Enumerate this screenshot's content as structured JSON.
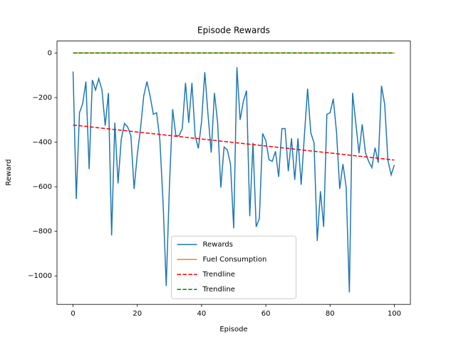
{
  "chart_data": {
    "type": "line",
    "title": "Episode Rewards",
    "x_label": "Episode",
    "y_label": "Reward",
    "x": [
      0,
      1,
      2,
      3,
      4,
      5,
      6,
      7,
      8,
      9,
      10,
      11,
      12,
      13,
      14,
      15,
      16,
      17,
      18,
      19,
      20,
      21,
      22,
      23,
      24,
      25,
      26,
      27,
      28,
      29,
      30,
      31,
      32,
      33,
      34,
      35,
      36,
      37,
      38,
      39,
      40,
      41,
      42,
      43,
      44,
      45,
      46,
      47,
      48,
      49,
      50,
      51,
      52,
      53,
      54,
      55,
      56,
      57,
      58,
      59,
      60,
      61,
      62,
      63,
      64,
      65,
      66,
      67,
      68,
      69,
      70,
      71,
      72,
      73,
      74,
      75,
      76,
      77,
      78,
      79,
      80,
      81,
      82,
      83,
      84,
      85,
      86,
      87,
      88,
      89,
      90,
      91,
      92,
      93,
      94,
      95,
      96,
      97,
      98,
      99,
      100
    ],
    "series": [
      {
        "name": "Rewards",
        "color": "#1f77b4",
        "dash": false,
        "values": [
          -83,
          -655,
          -268,
          -227,
          -128,
          -521,
          -121,
          -166,
          -115,
          -166,
          -326,
          -179,
          -818,
          -313,
          -585,
          -387,
          -316,
          -332,
          -371,
          -610,
          -454,
          -339,
          -192,
          -128,
          -195,
          -275,
          -268,
          -387,
          -665,
          -1045,
          -594,
          -252,
          -371,
          -371,
          -339,
          -134,
          -313,
          -134,
          -371,
          -428,
          -307,
          -86,
          -275,
          -447,
          -179,
          -313,
          -604,
          -422,
          -434,
          -498,
          -786,
          -64,
          -300,
          -217,
          -169,
          -732,
          -403,
          -780,
          -741,
          -361,
          -393,
          -479,
          -486,
          -441,
          -556,
          -339,
          -339,
          -530,
          -383,
          -569,
          -383,
          -591,
          -371,
          -160,
          -358,
          -403,
          -843,
          -620,
          -780,
          -275,
          -268,
          -205,
          -355,
          -610,
          -498,
          -601,
          -1074,
          -179,
          -313,
          -450,
          -320,
          -447,
          -486,
          -514,
          -425,
          -492,
          -147,
          -230,
          -482,
          -547,
          -502
        ]
      },
      {
        "name": "Fuel Consumption",
        "color": "#ff7f0e",
        "dash": false,
        "values": [
          0,
          0,
          0,
          0,
          0,
          0,
          0,
          0,
          0,
          0,
          0,
          0,
          0,
          0,
          0,
          0,
          0,
          0,
          0,
          0,
          0,
          0,
          0,
          0,
          0,
          0,
          0,
          0,
          0,
          0,
          0,
          0,
          0,
          0,
          0,
          0,
          0,
          0,
          0,
          0,
          0,
          0,
          0,
          0,
          0,
          0,
          0,
          0,
          0,
          0,
          0,
          0,
          0,
          0,
          0,
          0,
          0,
          0,
          0,
          0,
          0,
          0,
          0,
          0,
          0,
          0,
          0,
          0,
          0,
          0,
          0,
          0,
          0,
          0,
          0,
          0,
          0,
          0,
          0,
          0,
          0,
          0,
          0,
          0,
          0,
          0,
          0,
          0,
          0,
          0,
          0,
          0,
          0,
          0,
          0,
          0,
          0,
          0,
          0,
          0,
          0
        ]
      },
      {
        "name": "Trendline",
        "color": "#ff0000",
        "dash": true,
        "x": [
          0,
          100
        ],
        "values": [
          -323,
          -480
        ]
      },
      {
        "name": "Trendline",
        "color": "#008000",
        "dash": true,
        "x": [
          0,
          100
        ],
        "values": [
          0,
          0
        ]
      }
    ],
    "xlim": [
      -5,
      105
    ],
    "ylim": [
      -1127.7,
      53.7
    ],
    "xticks": [
      0,
      20,
      40,
      60,
      80,
      100
    ],
    "yticks": [
      0,
      {
        "value": -200,
        "label": "−200"
      },
      {
        "value": -400,
        "label": "−400"
      },
      {
        "value": -600,
        "label": "−600"
      },
      {
        "value": -800,
        "label": "−800"
      },
      {
        "value": -1000,
        "label": "−1000"
      }
    ],
    "legend": "lower center",
    "grid": false
  }
}
